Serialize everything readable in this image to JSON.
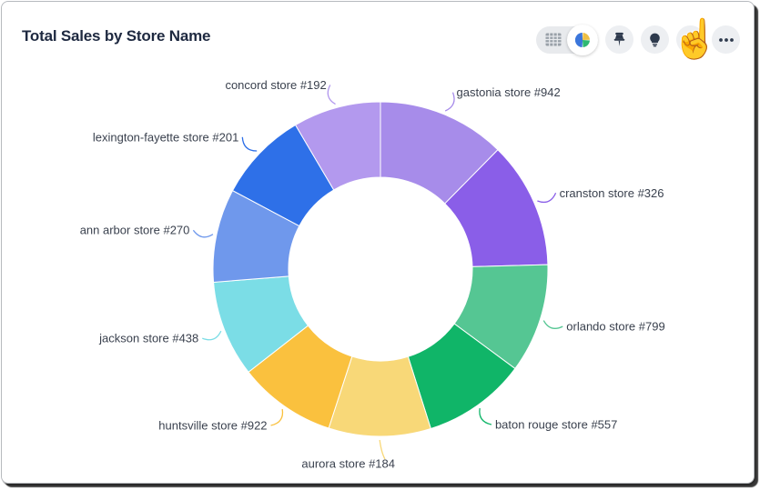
{
  "header": {
    "title": "Total Sales by Store Name"
  },
  "toolbar": {
    "view_toggle": {
      "selected": "chart",
      "options": [
        {
          "id": "table",
          "icon": "table-icon"
        },
        {
          "id": "chart",
          "icon": "pie-chart-icon"
        }
      ]
    },
    "actions": [
      {
        "id": "pin",
        "icon": "pin-icon"
      },
      {
        "id": "insights",
        "icon": "lightbulb-icon"
      },
      {
        "id": "upload",
        "icon": "upload-icon"
      },
      {
        "id": "more",
        "icon": "ellipsis-icon"
      }
    ],
    "cursor": {
      "type": "hand-pointer",
      "over": "upload-button",
      "glyph": "☝"
    }
  },
  "chart_data": {
    "type": "pie",
    "subtype": "donut",
    "title": "Total Sales by Store Name",
    "start_angle_deg": 0,
    "direction": "clockwise",
    "inner_radius_ratio": 0.55,
    "legend_position": "outside-labels",
    "slices": [
      {
        "label": "gastonia store #942",
        "angle_deg": 44.5,
        "share_pct": 12.4,
        "color": "#a78cea"
      },
      {
        "label": "cranston store #326",
        "angle_deg": 44.0,
        "share_pct": 12.2,
        "color": "#8a5ee8"
      },
      {
        "label": "orlando store #799",
        "angle_deg": 38.0,
        "share_pct": 10.6,
        "color": "#55c693"
      },
      {
        "label": "baton rouge store #557",
        "angle_deg": 36.0,
        "share_pct": 10.0,
        "color": "#10b568"
      },
      {
        "label": "aurora store #184",
        "angle_deg": 35.5,
        "share_pct": 9.9,
        "color": "#f8d878"
      },
      {
        "label": "huntsville store #922",
        "angle_deg": 34.0,
        "share_pct": 9.4,
        "color": "#fac13e"
      },
      {
        "label": "jackson store #438",
        "angle_deg": 33.5,
        "share_pct": 9.3,
        "color": "#7bdde6"
      },
      {
        "label": "ann arbor store #270",
        "angle_deg": 32.5,
        "share_pct": 9.0,
        "color": "#6f98ec"
      },
      {
        "label": "lexington-fayette store #201",
        "angle_deg": 31.5,
        "share_pct": 8.8,
        "color": "#2e70e8"
      },
      {
        "label": "concord store #192",
        "angle_deg": 30.5,
        "share_pct": 8.5,
        "color": "#b399ee"
      }
    ]
  }
}
